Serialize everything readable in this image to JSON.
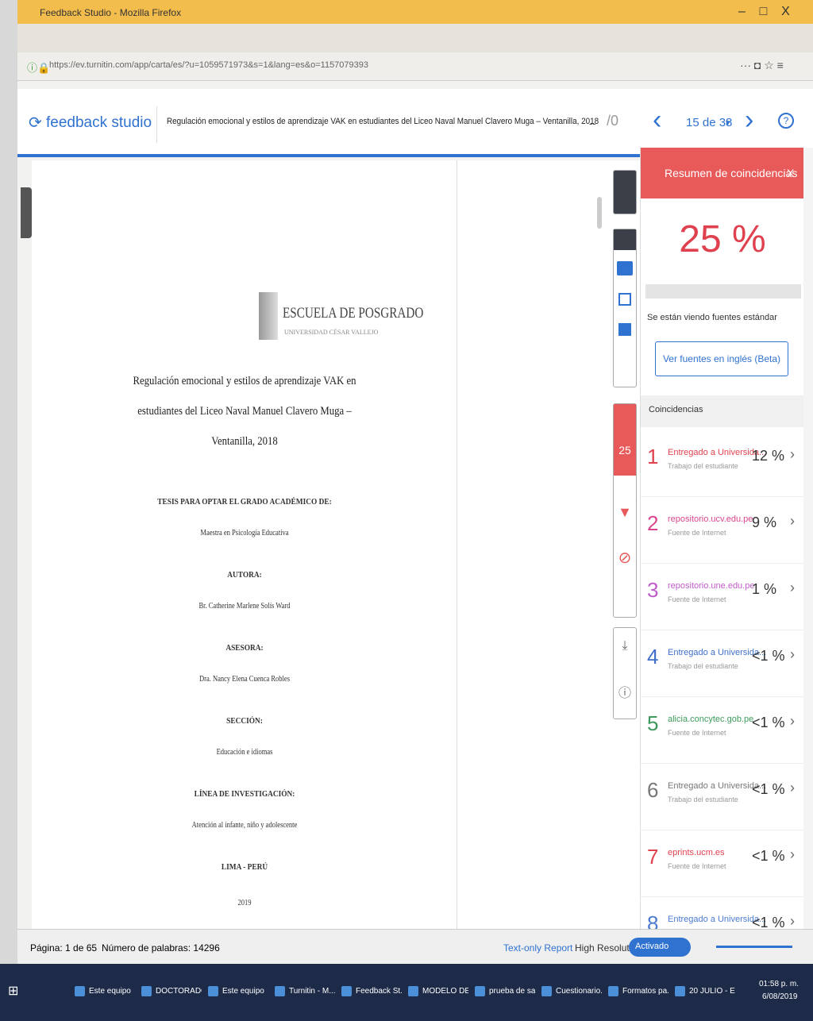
{
  "browser": {
    "title": "Feedback Studio - Mozilla Firefox",
    "url": "https://ev.turnitin.com/app/carta/es/?u=1059571973&s=1&lang=es&o=1157079393"
  },
  "header": {
    "logo": "feedback studio",
    "doc_title": "Regulación emocional y estilos de aprendizaje VAK en estudiantes del Liceo Naval Manuel Clavero Muga – Ventanilla, 2018",
    "grade": "--",
    "grade_max": "/0",
    "page_nav": "15 de 38"
  },
  "document": {
    "school": "ESCUELA DE POSGRADO",
    "university": "UNIVERSIDAD CÉSAR VALLEJO",
    "title_lines": [
      "Regulación emocional y estilos de aprendizaje VAK en",
      "estudiantes del Liceo Naval Manuel Clavero Muga –",
      "Ventanilla, 2018"
    ],
    "sections": [
      {
        "heading": "TESIS PARA OPTAR EL GRADO ACADÉMICO DE:",
        "text": "Maestra en Psicología Educativa"
      },
      {
        "heading": "AUTORA:",
        "text": "Br. Catherine Marlene Solís Ward"
      },
      {
        "heading": "ASESORA:",
        "text": "Dra. Nancy Elena Cuenca Robles"
      },
      {
        "heading": "SECCIÓN:",
        "text": "Educación e idiomas"
      },
      {
        "heading": "LÍNEA DE INVESTIGACIÓN:",
        "text": "Atención al infante, niño y adolescente"
      },
      {
        "heading": "LIMA - PERÚ",
        "text": "2019"
      }
    ]
  },
  "toolbar": {
    "score": "25"
  },
  "panel": {
    "title": "Resumen de coincidencias",
    "score": "25 %",
    "note": "Se están viendo fuentes estándar",
    "button": "Ver fuentes en inglés (Beta)",
    "list_label": "Coincidencias",
    "matches": [
      {
        "number": "1",
        "source": "Entregado a Universida...",
        "type": "Trabajo del estudiante",
        "percent": "12 %",
        "color": "#e0414f"
      },
      {
        "number": "2",
        "source": "repositorio.ucv.edu.pe",
        "type": "Fuente de Internet",
        "percent": "9 %",
        "color": "#d9468f"
      },
      {
        "number": "3",
        "source": "repositorio.une.edu.pe",
        "type": "Fuente de Internet",
        "percent": "1 %",
        "color": "#c05cc9"
      },
      {
        "number": "4",
        "source": "Entregado a Universida...",
        "type": "Trabajo del estudiante",
        "percent": "<1 %",
        "color": "#3f6fc9"
      },
      {
        "number": "5",
        "source": "alicia.concytec.gob.pe",
        "type": "Fuente de Internet",
        "percent": "<1 %",
        "color": "#3e9a5c"
      },
      {
        "number": "6",
        "source": "Entregado a Universida...",
        "type": "Trabajo del estudiante",
        "percent": "<1 %",
        "color": "#777777"
      },
      {
        "number": "7",
        "source": "eprints.ucm.es",
        "type": "Fuente de Internet",
        "percent": "<1 %",
        "color": "#e0414f"
      },
      {
        "number": "8",
        "source": "Entregado a Universida...",
        "type": "Trabajo del estudiante",
        "percent": "<1 %",
        "color": "#4b7bd1"
      }
    ]
  },
  "footer": {
    "page": "Página: 1 de 65",
    "words": "Número de palabras: 14296",
    "text_only": "Text-only Report",
    "high_res": "High Resolution",
    "toggle": "Activado"
  },
  "taskbar": {
    "items": [
      "Este equipo",
      "DOCTORADO",
      "Este equipo",
      "Turnitin - M...",
      "Feedback St...",
      "MODELO DE...",
      "prueba de sa...",
      "Cuestionario...",
      "Formatos pa...",
      "20 JULIO - Ex..."
    ],
    "time": "01:58 p. m.",
    "date": "6/08/2019"
  }
}
